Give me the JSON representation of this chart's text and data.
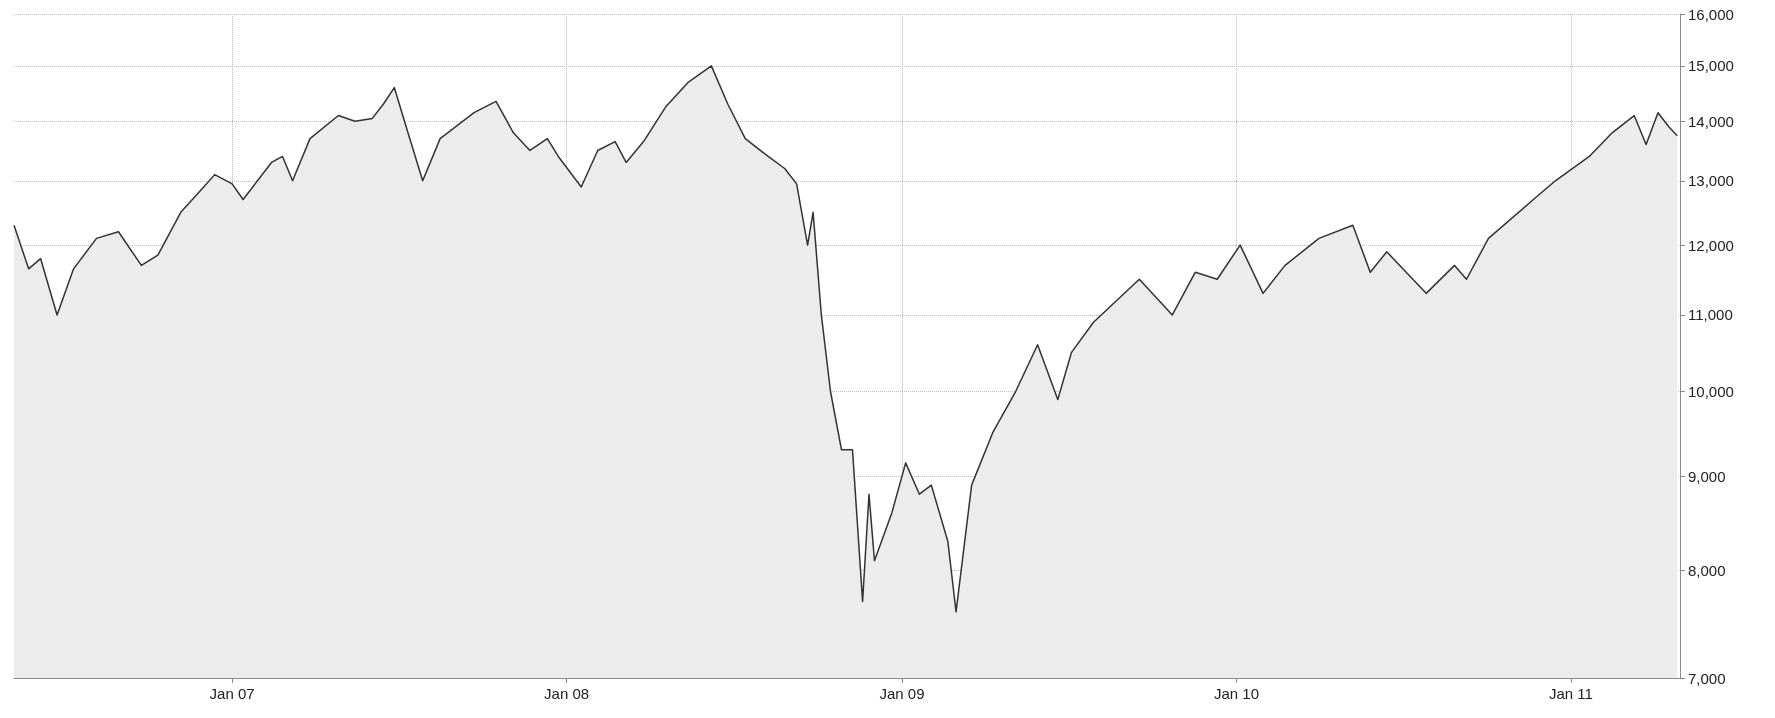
{
  "chart_data": {
    "type": "area",
    "x": [
      "2006-05-08",
      "2006-05-24",
      "2006-06-06",
      "2006-06-24",
      "2006-07-12",
      "2006-08-06",
      "2006-08-30",
      "2006-09-24",
      "2006-10-12",
      "2006-11-06",
      "2006-12-01",
      "2006-12-13",
      "2007-01-01",
      "2007-01-13",
      "2007-02-13",
      "2007-02-25",
      "2007-03-08",
      "2007-03-27",
      "2007-04-27",
      "2007-05-15",
      "2007-06-03",
      "2007-06-15",
      "2007-06-27",
      "2007-07-10",
      "2007-07-28",
      "2007-08-16",
      "2007-09-22",
      "2007-10-16",
      "2007-11-04",
      "2007-11-22",
      "2007-12-11",
      "2007-12-23",
      "2008-01-17",
      "2008-02-04",
      "2008-02-23",
      "2008-03-06",
      "2008-03-25",
      "2008-04-18",
      "2008-05-13",
      "2008-06-07",
      "2008-06-25",
      "2008-07-14",
      "2008-08-08",
      "2008-08-26",
      "2008-09-08",
      "2008-09-20",
      "2008-09-26",
      "2008-10-05",
      "2008-10-15",
      "2008-10-27",
      "2008-11-08",
      "2008-11-19",
      "2008-11-26",
      "2008-12-02",
      "2008-12-21",
      "2009-01-05",
      "2009-01-20",
      "2009-02-02",
      "2009-02-20",
      "2009-03-01",
      "2009-03-18",
      "2009-04-10",
      "2009-05-05",
      "2009-05-29",
      "2009-06-20",
      "2009-07-05",
      "2009-07-29",
      "2009-09-17",
      "2009-10-23",
      "2009-11-17",
      "2009-12-11",
      "2010-01-05",
      "2010-01-30",
      "2010-02-23",
      "2010-04-01",
      "2010-05-08",
      "2010-05-27",
      "2010-06-14",
      "2010-07-27",
      "2010-08-27",
      "2010-09-09",
      "2010-10-03",
      "2010-11-21",
      "2010-12-15",
      "2011-01-21",
      "2011-02-15",
      "2011-03-11",
      "2011-03-24",
      "2011-04-06",
      "2011-04-18",
      "2011-04-27"
    ],
    "values": [
      12300,
      11650,
      11800,
      11000,
      11650,
      12100,
      12200,
      11700,
      11850,
      12500,
      12900,
      13100,
      12950,
      12700,
      13300,
      13400,
      13000,
      13700,
      14100,
      14000,
      14050,
      14300,
      14600,
      13900,
      13000,
      13700,
      14150,
      14350,
      13800,
      13500,
      13700,
      13400,
      12900,
      13500,
      13650,
      13300,
      13650,
      14250,
      14700,
      15000,
      14300,
      13700,
      13400,
      13200,
      12950,
      12000,
      12500,
      11000,
      10000,
      9300,
      9300,
      7700,
      8800,
      8100,
      8600,
      9150,
      8800,
      8900,
      8300,
      7600,
      8900,
      9500,
      10000,
      10600,
      9900,
      10500,
      10900,
      11500,
      11000,
      11600,
      11500,
      12000,
      11300,
      11700,
      12100,
      12300,
      11600,
      11900,
      11300,
      11700,
      11500,
      12100,
      12700,
      13000,
      13400,
      13800,
      14100,
      13600,
      14150,
      13900,
      13750
    ],
    "color": "#333333",
    "xlim": [
      "2006-05-08",
      "2011-04-30"
    ],
    "xticks": [
      {
        "value": "2007-01-01",
        "label": "Jan 07"
      },
      {
        "value": "2008-01-01",
        "label": "Jan 08"
      },
      {
        "value": "2009-01-01",
        "label": "Jan 09"
      },
      {
        "value": "2010-01-01",
        "label": "Jan 10"
      },
      {
        "value": "2011-01-01",
        "label": "Jan 11"
      }
    ],
    "ylim": [
      7000,
      16000
    ],
    "yticks": [
      {
        "value": 7000,
        "label": "7,000"
      },
      {
        "value": 8000,
        "label": "8,000"
      },
      {
        "value": 9000,
        "label": "9,000"
      },
      {
        "value": 10000,
        "label": "10,000"
      },
      {
        "value": 11000,
        "label": "11,000"
      },
      {
        "value": 12000,
        "label": "12,000"
      },
      {
        "value": 13000,
        "label": "13,000"
      },
      {
        "value": 14000,
        "label": "14,000"
      },
      {
        "value": 15000,
        "label": "15,000"
      },
      {
        "value": 16000,
        "label": "16,000"
      }
    ],
    "log": true,
    "grid": true
  }
}
